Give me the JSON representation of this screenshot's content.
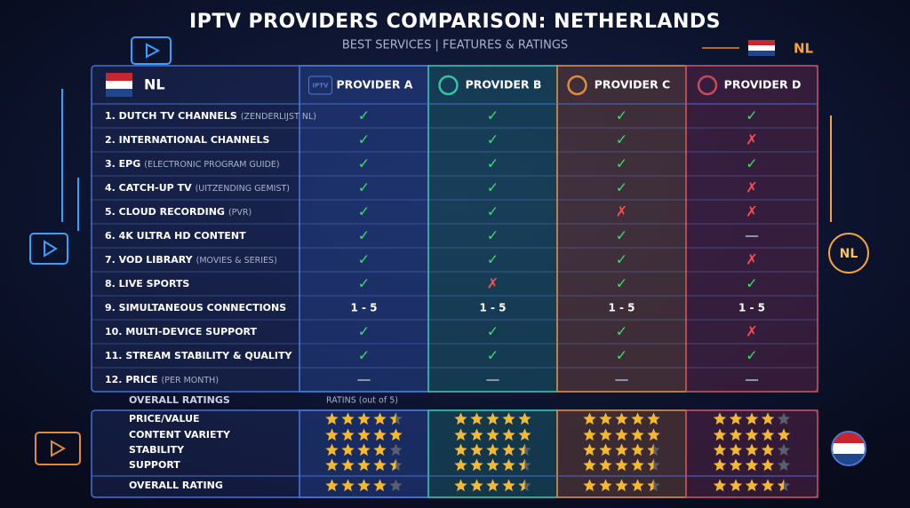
{
  "header": {
    "title": "IPTV PROVIDERS COMPARISON: NETHERLANDS",
    "subtitle": "BEST SERVICES | FEATURES & RATINGS",
    "badge": "NL"
  },
  "table": {
    "corner": "NL",
    "providers": [
      {
        "name": "PROVIDER A",
        "icon": "IPTV",
        "color": "#4a7bd8",
        "tint": "rgba(40,80,170,0.30)"
      },
      {
        "name": "PROVIDER B",
        "color": "#2fc6a6",
        "tint": "rgba(20,120,105,0.30)"
      },
      {
        "name": "PROVIDER C",
        "color": "#e08a3c",
        "tint": "rgba(150,75,25,0.32)"
      },
      {
        "name": "PROVIDER D",
        "color": "#c84a5a",
        "tint": "rgba(120,25,45,0.32)"
      }
    ],
    "symbol_colors": {
      "✓": "#3ddc6a",
      "✗": "#ff4d4d",
      "—": "#8a93a8"
    },
    "rows": [
      {
        "label": "1. DUTCH TV CHANNELS",
        "note": "(ZENDERLIJST NL)",
        "cells": [
          "✓",
          "✓",
          "✓",
          "✓"
        ]
      },
      {
        "label": "2. INTERNATIONAL CHANNELS",
        "cells": [
          "✓",
          "✓",
          "✓",
          "✗"
        ]
      },
      {
        "label": "3. EPG",
        "note": "(ELECTRONIC PROGRAM GUIDE)",
        "cells": [
          "✓",
          "✓",
          "✓",
          "✓"
        ]
      },
      {
        "label": "4. CATCH-UP TV",
        "note": "(UITZENDING GEMIST)",
        "cells": [
          "✓",
          "✓",
          "✓",
          "✗"
        ]
      },
      {
        "label": "5. CLOUD RECORDING",
        "note": "(PVR)",
        "cells": [
          "✓",
          "✓",
          "✗",
          "✗"
        ]
      },
      {
        "label": "6. 4K ULTRA HD CONTENT",
        "cells": [
          "✓",
          "✓",
          "✓",
          "—"
        ]
      },
      {
        "label": "7. VOD LIBRARY",
        "note": "(MOVIES & SERIES)",
        "cells": [
          "✓",
          "✓",
          "✓",
          "✗"
        ]
      },
      {
        "label": "8. LIVE SPORTS",
        "cells": [
          "✓",
          "✗",
          "✓",
          "✓"
        ]
      },
      {
        "label": "9. SIMULTANEOUS CONNECTIONS",
        "cells": [
          "1 - 5",
          "1 - 5",
          "1 - 5",
          "1 - 5"
        ]
      },
      {
        "label": "10. MULTI-DEVICE SUPPORT",
        "cells": [
          "✓",
          "✓",
          "✓",
          "✗"
        ]
      },
      {
        "label": "11. STREAM STABILITY & QUALITY",
        "cells": [
          "✓",
          "✓",
          "✓",
          "✓"
        ]
      },
      {
        "label": "12. PRICE",
        "note": "(PER MONTH)",
        "cells": [
          "—",
          "—",
          "—",
          "—"
        ]
      }
    ]
  },
  "ratings": {
    "title": "OVERALL RATINGS",
    "scale_label": "RATINS (out of 5)",
    "max": 5,
    "rows": [
      {
        "label": "PRICE/VALUE",
        "values": [
          4.5,
          5,
          5,
          4
        ]
      },
      {
        "label": "CONTENT VARIETY",
        "values": [
          5,
          5,
          5,
          5
        ]
      },
      {
        "label": "STABILITY",
        "values": [
          4,
          4.5,
          4.5,
          4
        ]
      },
      {
        "label": "SUPPORT",
        "values": [
          4.5,
          4.5,
          4.5,
          4
        ]
      },
      {
        "label": "OVERALL RATING",
        "values": [
          4,
          4.5,
          4.5,
          4.5
        ]
      }
    ]
  },
  "side_badge": "NL"
}
